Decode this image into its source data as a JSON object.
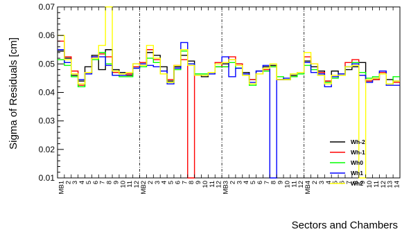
{
  "chart_data": {
    "type": "line",
    "xlabel": "Sectors and Chambers",
    "ylabel": "Sigma of Residuals [cm]",
    "ylim": [
      0.01,
      0.07
    ],
    "yticks": [
      "0.01",
      "0.02",
      "0.03",
      "0.04",
      "0.05",
      "0.06",
      "0.07"
    ],
    "bin_labels": [
      "MB1",
      "2",
      "3",
      "4",
      "5",
      "6",
      "7",
      "8",
      "9",
      "10",
      "11",
      "12",
      "MB2",
      "2",
      "3",
      "4",
      "5",
      "6",
      "7",
      "8",
      "9",
      "10",
      "11",
      "12",
      "MB3",
      "2",
      "3",
      "4",
      "5",
      "6",
      "7",
      "8",
      "9",
      "10",
      "11",
      "12",
      "MB4",
      "2",
      "3",
      "4",
      "5",
      "6",
      "7",
      "8",
      "9",
      "10",
      "11",
      "12",
      "13",
      "14"
    ],
    "separators_after_bin": [
      12,
      24,
      36
    ],
    "legend_position": "lower-right",
    "series": [
      {
        "name": "Wh-2",
        "color": "#000000",
        "values": [
          0.0545,
          0.052,
          0.046,
          0.044,
          0.049,
          0.053,
          0.048,
          0.055,
          0.048,
          0.047,
          0.046,
          0.05,
          0.05,
          0.054,
          0.053,
          0.049,
          0.044,
          0.049,
          0.053,
          0.051,
          0.046,
          0.0455,
          0.0465,
          0.049,
          0.05,
          0.0515,
          0.05,
          0.047,
          0.0445,
          0.0475,
          0.049,
          0.0495,
          0.0445,
          0.0445,
          0.046,
          0.047,
          0.051,
          0.049,
          0.0475,
          0.044,
          0.0475,
          0.0465,
          0.048,
          0.049,
          0.0505,
          0.044,
          0.0445,
          0.0465,
          0.0445,
          0.044
        ]
      },
      {
        "name": "Wh-1",
        "color": "#ff0000",
        "values": [
          0.058,
          0.0525,
          0.0475,
          0.0425,
          0.047,
          0.0525,
          0.0535,
          0.0525,
          0.047,
          0.0465,
          0.0465,
          0.049,
          0.0505,
          0.055,
          0.0515,
          0.0465,
          0.0445,
          0.0495,
          0.0515,
          0.01,
          0.046,
          0.046,
          0.0465,
          0.0505,
          0.049,
          0.0525,
          0.05,
          0.0465,
          0.0445,
          0.0465,
          0.048,
          0.049,
          0.0445,
          0.0445,
          0.0455,
          0.047,
          0.0525,
          0.05,
          0.047,
          0.044,
          0.046,
          0.046,
          0.0505,
          0.0515,
          0.046,
          0.044,
          0.0445,
          0.047,
          0.043,
          0.0435
        ]
      },
      {
        "name": "Wh0",
        "color": "#00ff00",
        "values": [
          0.0515,
          0.0495,
          0.0455,
          0.042,
          0.0465,
          0.0515,
          0.054,
          0.05,
          0.046,
          0.0455,
          0.0455,
          0.0485,
          0.049,
          0.052,
          0.0505,
          0.0465,
          0.0435,
          0.048,
          0.0545,
          0.05,
          0.0465,
          0.0465,
          0.047,
          0.049,
          0.049,
          0.0505,
          0.0485,
          0.046,
          0.0425,
          0.0465,
          0.0475,
          0.049,
          0.0455,
          0.0445,
          0.0455,
          0.0465,
          0.0495,
          0.048,
          0.046,
          0.0435,
          0.045,
          0.046,
          0.049,
          0.0505,
          0.047,
          0.045,
          0.0455,
          0.0465,
          0.043,
          0.0455
        ]
      },
      {
        "name": "Wh1",
        "color": "#0000ff",
        "values": [
          0.055,
          0.0505,
          0.0465,
          0.0445,
          0.0465,
          0.0525,
          0.0525,
          0.0495,
          0.046,
          0.046,
          0.047,
          0.0485,
          0.05,
          0.0495,
          0.049,
          0.0475,
          0.043,
          0.0485,
          0.0575,
          0.05,
          0.046,
          0.046,
          0.0465,
          0.05,
          0.0525,
          0.0455,
          0.0485,
          0.0465,
          0.0435,
          0.0475,
          0.0495,
          0.01,
          0.0445,
          0.045,
          0.0465,
          0.047,
          0.0505,
          0.047,
          0.0465,
          0.042,
          0.0455,
          0.0465,
          0.049,
          0.05,
          0.046,
          0.0435,
          0.045,
          0.0475,
          0.0425,
          0.0425
        ]
      },
      {
        "name": "Wh2",
        "color": "#ffff00",
        "values": [
          0.06,
          0.0515,
          0.0465,
          0.043,
          0.047,
          0.052,
          0.0565,
          0.07,
          0.0475,
          0.0465,
          0.047,
          0.05,
          0.0495,
          0.0565,
          0.052,
          0.0465,
          0.0435,
          0.0495,
          0.055,
          0.0495,
          0.046,
          0.046,
          0.047,
          0.05,
          0.0505,
          0.0515,
          0.0495,
          0.046,
          0.043,
          0.0465,
          0.0485,
          0.05,
          0.0445,
          0.0445,
          0.0465,
          0.047,
          0.054,
          0.05,
          0.046,
          0.043,
          0.046,
          0.046,
          0.049,
          0.0495,
          0.01,
          0.0445,
          0.045,
          0.0465,
          0.043,
          0.044
        ]
      }
    ]
  }
}
